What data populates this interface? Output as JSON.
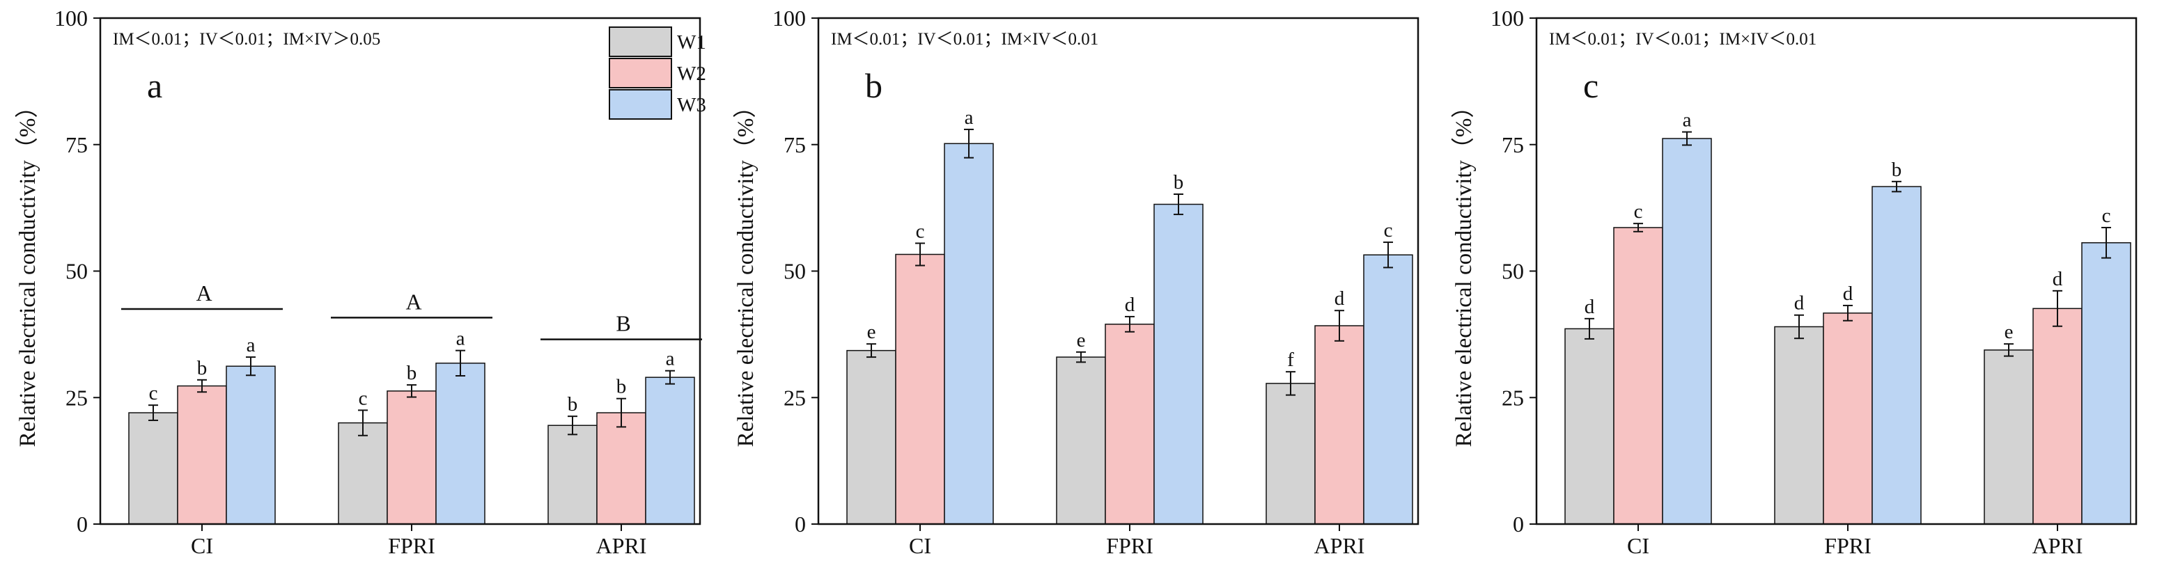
{
  "colors": {
    "series": [
      "#d3d3d3",
      "#f7c3c3",
      "#bcd5f3"
    ],
    "stroke": "#111111"
  },
  "legend": {
    "labels": [
      "W1",
      "W2",
      "W3"
    ]
  },
  "chart_data": [
    {
      "type": "bar",
      "panel_label": "a",
      "note": "IM＜0.01；IV＜0.01；IM×IV＞0.05",
      "ylabel": "Relative electrical conductivity（%）",
      "ylim": [
        0,
        100
      ],
      "yticks": [
        0,
        25,
        50,
        75,
        100
      ],
      "categories": [
        "CI",
        "FPRI",
        "APRI"
      ],
      "series": [
        {
          "name": "W1",
          "values": [
            22,
            20,
            19.5
          ],
          "errors": [
            1.5,
            2.5,
            1.8
          ],
          "letters": [
            "c",
            "c",
            "b"
          ]
        },
        {
          "name": "W2",
          "values": [
            27.3,
            26.3,
            22
          ],
          "errors": [
            1.2,
            1.2,
            2.8
          ],
          "letters": [
            "b",
            "b",
            "b"
          ]
        },
        {
          "name": "W3",
          "values": [
            31.2,
            31.8,
            29
          ],
          "errors": [
            1.8,
            2.5,
            1.3
          ],
          "letters": [
            "a",
            "a",
            "a"
          ]
        }
      ],
      "group_letters": [
        "A",
        "A",
        "B"
      ],
      "group_line_y": [
        42.5,
        40.8,
        36.5
      ]
    },
    {
      "type": "bar",
      "panel_label": "b",
      "note": "IM＜0.01；IV＜0.01；IM×IV＜0.01",
      "ylabel": "Relative electrical conductivity（%）",
      "ylim": [
        0,
        100
      ],
      "yticks": [
        0,
        25,
        50,
        75,
        100
      ],
      "categories": [
        "CI",
        "FPRI",
        "APRI"
      ],
      "series": [
        {
          "name": "W1",
          "values": [
            34.3,
            33,
            27.8
          ],
          "errors": [
            1.3,
            1,
            2.3
          ],
          "letters": [
            "e",
            "e",
            "f"
          ]
        },
        {
          "name": "W2",
          "values": [
            53.3,
            39.5,
            39.2
          ],
          "errors": [
            2.2,
            1.5,
            3
          ],
          "letters": [
            "c",
            "d",
            "d"
          ]
        },
        {
          "name": "W3",
          "values": [
            75.2,
            63.2,
            53.2
          ],
          "errors": [
            2.8,
            2,
            2.5
          ],
          "letters": [
            "a",
            "b",
            "c"
          ]
        }
      ]
    },
    {
      "type": "bar",
      "panel_label": "c",
      "note": "IM＜0.01；IV＜0.01；IM×IV＜0.01",
      "ylabel": "Relative electrical conductivity（%）",
      "ylim": [
        0,
        100
      ],
      "yticks": [
        0,
        25,
        50,
        75,
        100
      ],
      "categories": [
        "CI",
        "FPRI",
        "APRI"
      ],
      "series": [
        {
          "name": "W1",
          "values": [
            38.6,
            39,
            34.4
          ],
          "errors": [
            2,
            2.3,
            1.2
          ],
          "letters": [
            "d",
            "d",
            "e"
          ]
        },
        {
          "name": "W2",
          "values": [
            58.6,
            41.7,
            42.6
          ],
          "errors": [
            0.8,
            1.5,
            3.5
          ],
          "letters": [
            "c",
            "d",
            "d"
          ]
        },
        {
          "name": "W3",
          "values": [
            76.2,
            66.7,
            55.6
          ],
          "errors": [
            1.3,
            1,
            3
          ],
          "letters": [
            "a",
            "b",
            "c"
          ]
        }
      ]
    }
  ]
}
